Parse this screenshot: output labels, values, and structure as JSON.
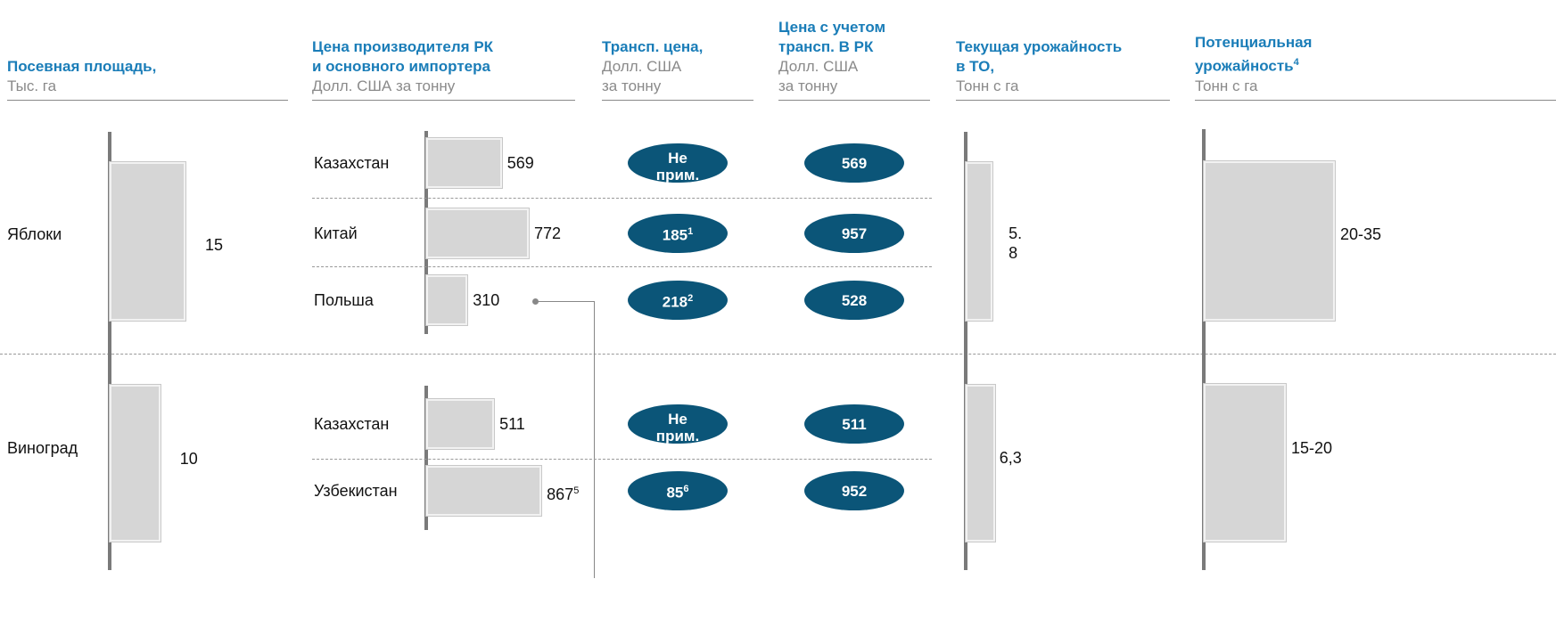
{
  "headers": [
    {
      "title": [
        "Посевная площадь,"
      ],
      "subtitle": [
        "Тыс. га"
      ]
    },
    {
      "title": [
        "Цена производителя РК",
        "и основного импортера"
      ],
      "subtitle": [
        "Долл. США за тонну"
      ]
    },
    {
      "title": [
        "Трансп. цена,"
      ],
      "subtitle": [
        "Долл. США",
        "за тонну"
      ]
    },
    {
      "title": [
        "Цена с учетом",
        "трансп. В РК"
      ],
      "subtitle": [
        "Долл. США",
        "за тонну"
      ]
    },
    {
      "title": [
        "Текущая урожайность",
        "в ТО,"
      ],
      "subtitle": [
        "Тонн с га"
      ]
    },
    {
      "title": [
        "Потенциальная",
        "урожайность"
      ],
      "title_note": "4",
      "subtitle": [
        "Тонн с га"
      ]
    }
  ],
  "crops": [
    {
      "name": "Яблоки",
      "area": 15,
      "yield_current": {
        "value": 5.8,
        "label": "5.8"
      },
      "yield_potential": "20-35",
      "origins": [
        {
          "country": "Казахстан",
          "price": 569,
          "transport": "Не прим.",
          "total": 569
        },
        {
          "country": "Китай",
          "price": 772,
          "transport": 185,
          "transport_note": "1",
          "total": 957
        },
        {
          "country": "Польша",
          "price": 310,
          "transport": 218,
          "transport_note": "2",
          "total": 528
        }
      ]
    },
    {
      "name": "Виноград",
      "area": 10,
      "yield_current": {
        "value": 6.3,
        "label": "6,3"
      },
      "yield_potential": "15-20",
      "origins": [
        {
          "country": "Казахстан",
          "price": 511,
          "transport": "Не прим.",
          "total": 511
        },
        {
          "country": "Узбекистан",
          "price": 867,
          "price_note": "5",
          "transport": 85,
          "transport_note": "6",
          "total": 952
        }
      ]
    }
  ]
}
